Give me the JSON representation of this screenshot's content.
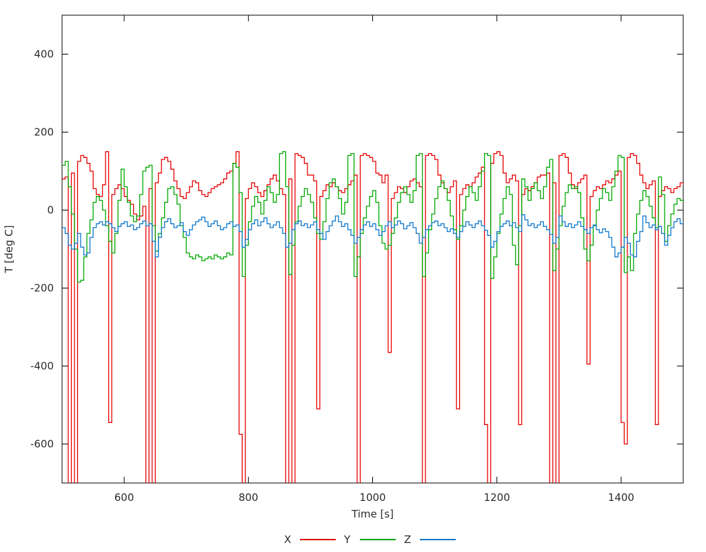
{
  "figure": {
    "background": "#ffffff",
    "axis_color": "#000000",
    "text_color": "#2b2b2b"
  },
  "chart_data": {
    "type": "line",
    "style": "steps",
    "title": "",
    "xlabel": "Time [s]",
    "ylabel": "T [deg C]",
    "xlim": [
      500,
      1500
    ],
    "ylim": [
      -700,
      500
    ],
    "xticks": [
      600,
      800,
      1000,
      1200,
      1400
    ],
    "yticks": [
      400,
      200,
      0,
      -200,
      -400,
      -600
    ],
    "grid": false,
    "legend_position": "bottom-center",
    "x0": 500,
    "dx": 5,
    "clip_note": "values of -750 represent spikes clipped below the visible axis range",
    "series": [
      {
        "name": "X",
        "color": "#e70000",
        "values": [
          80,
          85,
          -750,
          95,
          -750,
          125,
          140,
          135,
          120,
          100,
          55,
          40,
          35,
          65,
          150,
          -545,
          40,
          55,
          65,
          55,
          35,
          25,
          15,
          -10,
          -25,
          -15,
          10,
          -750,
          55,
          -750,
          70,
          95,
          130,
          135,
          125,
          105,
          75,
          55,
          35,
          30,
          45,
          60,
          75,
          70,
          50,
          40,
          35,
          45,
          55,
          60,
          65,
          70,
          80,
          95,
          100,
          120,
          150,
          -575,
          -750,
          30,
          55,
          70,
          60,
          45,
          35,
          50,
          65,
          80,
          90,
          75,
          55,
          40,
          -750,
          80,
          -750,
          145,
          140,
          135,
          120,
          90,
          90,
          75,
          -510,
          35,
          50,
          65,
          60,
          70,
          60,
          50,
          45,
          55,
          65,
          75,
          90,
          -750,
          140,
          145,
          140,
          135,
          125,
          95,
          90,
          70,
          90,
          -365,
          30,
          45,
          60,
          55,
          45,
          60,
          75,
          80,
          70,
          60,
          -750,
          140,
          145,
          140,
          130,
          90,
          70,
          55,
          45,
          60,
          75,
          -510,
          40,
          55,
          65,
          60,
          70,
          85,
          95,
          110,
          -550,
          -750,
          120,
          145,
          150,
          140,
          95,
          70,
          80,
          90,
          75,
          -550,
          40,
          55,
          50,
          60,
          70,
          85,
          90,
          90,
          95,
          -750,
          70,
          -750,
          140,
          145,
          135,
          95,
          65,
          55,
          70,
          80,
          90,
          -395,
          35,
          50,
          60,
          55,
          65,
          75,
          70,
          80,
          90,
          100,
          -545,
          -600,
          135,
          145,
          140,
          120,
          90,
          70,
          55,
          65,
          75,
          -550,
          35,
          50,
          60,
          55,
          45,
          55,
          60,
          70,
          65
        ]
      },
      {
        "name": "Y",
        "color": "#00a800",
        "values": [
          115,
          125,
          60,
          -10,
          -100,
          -185,
          -180,
          -120,
          -60,
          -25,
          20,
          35,
          25,
          0,
          -40,
          -80,
          -110,
          -60,
          25,
          105,
          60,
          20,
          -15,
          -30,
          -15,
          40,
          100,
          110,
          115,
          -40,
          -105,
          -60,
          -20,
          20,
          55,
          60,
          40,
          15,
          -40,
          -70,
          -110,
          -120,
          -125,
          -115,
          -120,
          -130,
          -125,
          -120,
          -125,
          -115,
          -120,
          -125,
          -120,
          -110,
          -115,
          120,
          110,
          45,
          -170,
          -90,
          -30,
          10,
          35,
          20,
          -10,
          25,
          60,
          45,
          20,
          40,
          145,
          150,
          60,
          -165,
          -90,
          -30,
          10,
          35,
          55,
          40,
          20,
          -20,
          -60,
          -75,
          -30,
          30,
          70,
          80,
          60,
          30,
          -10,
          20,
          140,
          145,
          -170,
          -120,
          -60,
          -20,
          10,
          35,
          50,
          20,
          -40,
          -85,
          -100,
          -90,
          -60,
          -20,
          20,
          45,
          60,
          40,
          20,
          50,
          140,
          145,
          -170,
          -110,
          -50,
          -10,
          30,
          60,
          75,
          55,
          25,
          -15,
          -50,
          -75,
          -40,
          0,
          35,
          60,
          45,
          25,
          60,
          100,
          145,
          140,
          -175,
          -120,
          -60,
          -10,
          30,
          60,
          40,
          -90,
          -140,
          -40,
          80,
          60,
          25,
          55,
          70,
          50,
          30,
          60,
          110,
          130,
          -155,
          -100,
          -40,
          10,
          45,
          65,
          55,
          60,
          45,
          -20,
          -100,
          -130,
          -90,
          -40,
          0,
          30,
          55,
          45,
          25,
          60,
          100,
          140,
          135,
          -160,
          -120,
          -155,
          -60,
          -10,
          25,
          50,
          35,
          10,
          -20,
          -45,
          85,
          40,
          -80,
          -40,
          -10,
          15,
          30,
          25,
          20
        ]
      },
      {
        "name": "Z",
        "color": "#0d77cc",
        "values": [
          -45,
          -60,
          -90,
          -100,
          -85,
          -60,
          -95,
          -115,
          -110,
          -70,
          -45,
          -35,
          -30,
          -38,
          -30,
          -35,
          -45,
          -55,
          -42,
          -35,
          -30,
          -42,
          -38,
          -50,
          -45,
          -35,
          -28,
          -40,
          -35,
          -80,
          -120,
          -70,
          -45,
          -30,
          -22,
          -35,
          -45,
          -40,
          -32,
          -55,
          -65,
          -50,
          -38,
          -30,
          -25,
          -18,
          -30,
          -42,
          -35,
          -28,
          -40,
          -50,
          -45,
          -35,
          -30,
          -42,
          -38,
          -55,
          -95,
          -75,
          -50,
          -35,
          -25,
          -40,
          -30,
          -20,
          -35,
          -45,
          -38,
          -30,
          -45,
          -60,
          -95,
          -85,
          -50,
          -35,
          -28,
          -40,
          -35,
          -45,
          -38,
          -30,
          -50,
          -60,
          -75,
          -55,
          -40,
          -28,
          -15,
          -30,
          -42,
          -35,
          -50,
          -65,
          -85,
          -70,
          -50,
          -38,
          -30,
          -42,
          -35,
          -50,
          -65,
          -55,
          -40,
          -30,
          -45,
          -38,
          -28,
          -35,
          -48,
          -40,
          -32,
          -45,
          -60,
          -85,
          -70,
          -50,
          -40,
          -32,
          -28,
          -40,
          -35,
          -45,
          -55,
          -48,
          -60,
          -70,
          -55,
          -42,
          -30,
          -38,
          -45,
          -35,
          -28,
          -40,
          -52,
          -65,
          -95,
          -80,
          -55,
          -42,
          -35,
          -28,
          -40,
          -32,
          -45,
          -55,
          -12,
          -25,
          -40,
          -35,
          -45,
          -38,
          -30,
          -42,
          -50,
          -62,
          -85,
          -70,
          -15,
          -30,
          -42,
          -35,
          -45,
          -38,
          -30,
          -42,
          -50,
          -60,
          -45,
          -38,
          -50,
          -58,
          -48,
          -55,
          -70,
          -95,
          -120,
          -110,
          -95,
          -70,
          -85,
          -115,
          -120,
          -80,
          -55,
          -15,
          -32,
          -45,
          -38,
          -50,
          -42,
          -60,
          -90,
          -65,
          -45,
          -30,
          -22,
          -35,
          -30
        ]
      }
    ]
  }
}
